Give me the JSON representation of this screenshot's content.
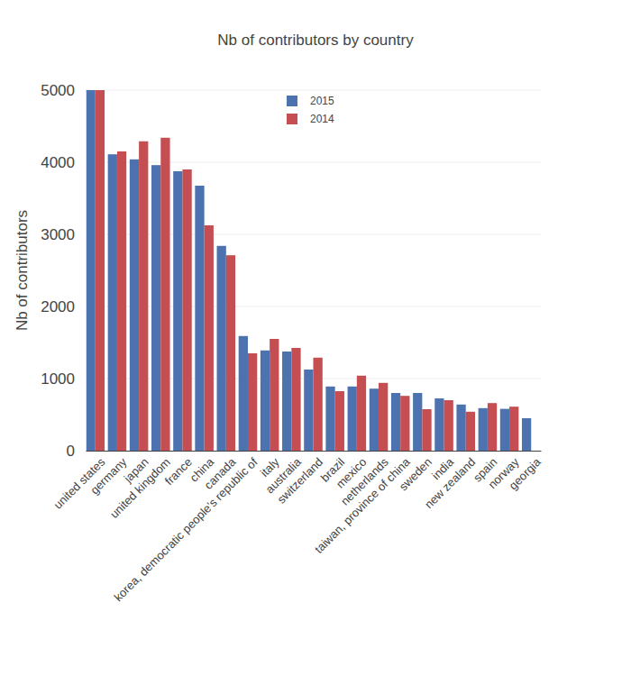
{
  "chart_data": {
    "type": "bar",
    "title": "Nb of contributors by country",
    "y_label": "Nb of contributors",
    "categories": [
      "united states",
      "germany",
      "japan",
      "united kingdom",
      "france",
      "china",
      "canada",
      "korea, democratic people's republic of",
      "italy",
      "australia",
      "switzerland",
      "brazil",
      "mexico",
      "netherlands",
      "taiwan, province of china",
      "sweden",
      "india",
      "new zealand",
      "spain",
      "norway",
      "georgia"
    ],
    "series": [
      {
        "name": "2015",
        "color": "#4c72b0",
        "values": [
          5000,
          4110,
          4040,
          3960,
          3875,
          3675,
          2840,
          1590,
          1390,
          1375,
          1125,
          890,
          890,
          860,
          800,
          800,
          725,
          640,
          590,
          580,
          450
        ]
      },
      {
        "name": "2014",
        "color": "#c44e52",
        "values": [
          5000,
          4150,
          4290,
          4340,
          3900,
          3125,
          2710,
          1350,
          1550,
          1425,
          1290,
          825,
          1040,
          940,
          760,
          575,
          700,
          540,
          660,
          610,
          null
        ]
      }
    ],
    "ylim": [
      0,
      5000
    ],
    "yticks": [
      0,
      1000,
      2000,
      3000,
      4000,
      5000
    ],
    "grid": true,
    "legend": "top"
  }
}
